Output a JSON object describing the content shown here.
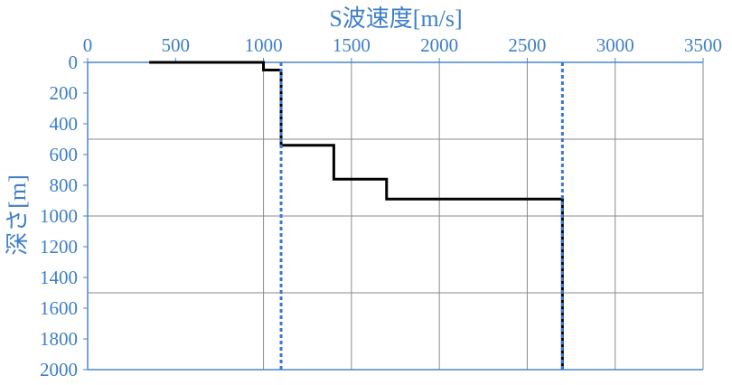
{
  "chart_data": {
    "type": "line",
    "xlabel": "S波速度[m/s]",
    "ylabel": "深さ[m]",
    "xlim": [
      0,
      3500
    ],
    "ylim": [
      0,
      2000
    ],
    "y_inverted": true,
    "x_axis_position": "top",
    "x_ticks": [
      0,
      500,
      1000,
      1500,
      2000,
      2500,
      3000,
      3500
    ],
    "y_ticks": [
      0,
      200,
      400,
      600,
      800,
      1000,
      1200,
      1400,
      1600,
      1800,
      2000
    ],
    "x_tick_labels": [
      "0",
      "500",
      "1000",
      "1500",
      "2000",
      "2500",
      "3000",
      "3500"
    ],
    "y_tick_labels": [
      "0",
      "200",
      "400",
      "600",
      "800",
      "1000",
      "1200",
      "1400",
      "1600",
      "1800",
      "2000"
    ],
    "grid": {
      "vertical": [
        1000,
        1500,
        2000,
        2500,
        3000,
        3500
      ],
      "horizontal": [
        500,
        1000,
        1500
      ]
    },
    "colors": {
      "axis_text": "#3f7fc6",
      "axis_line": "#4a86cf",
      "grid": "#8a8a8a",
      "profile": "#000000",
      "reference": "#3a78d0"
    },
    "series": [
      {
        "style": "solid",
        "x": [
          350,
          1000,
          1000,
          1100,
          1100,
          1400,
          1400,
          1700,
          1700,
          2700,
          2700
        ],
        "y": [
          0,
          0,
          50,
          50,
          540,
          540,
          760,
          760,
          890,
          890,
          2000
        ]
      },
      {
        "style": "dotted",
        "x": [
          1100,
          1100
        ],
        "y": [
          0,
          2000
        ]
      },
      {
        "style": "dotted",
        "x": [
          2700,
          2700
        ],
        "y": [
          0,
          2000
        ]
      }
    ]
  }
}
